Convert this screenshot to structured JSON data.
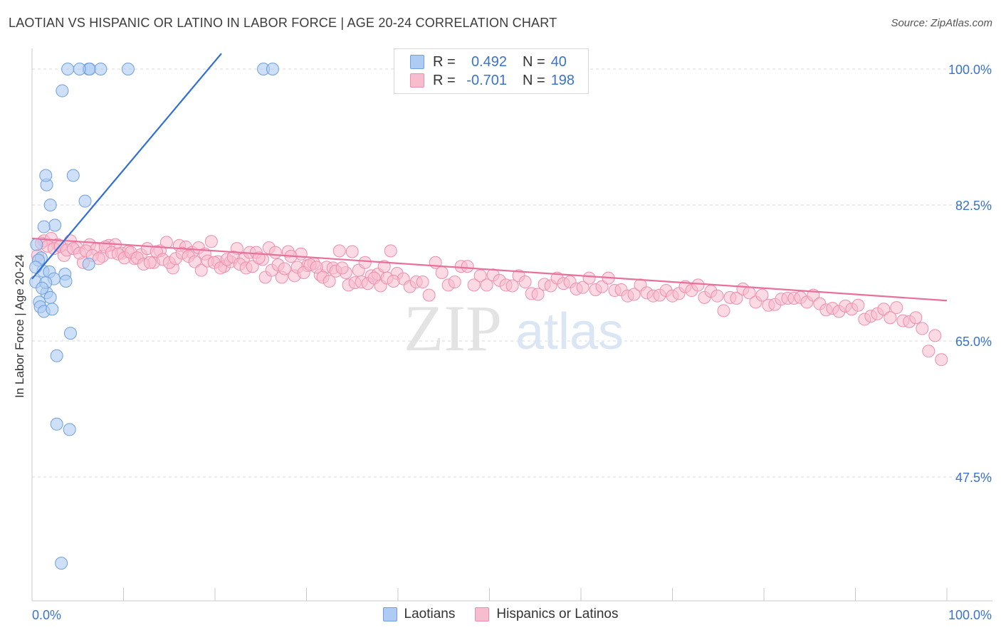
{
  "title": "LAOTIAN VS HISPANIC OR LATINO IN LABOR FORCE | AGE 20-24 CORRELATION CHART",
  "source": "Source: ZipAtlas.com",
  "watermark": {
    "zip": "ZIP",
    "atlas": "atlas"
  },
  "legend": {
    "series1": {
      "r_label": "R =",
      "r_value": "0.492",
      "n_label": "N =",
      "n_value": "40"
    },
    "series2": {
      "r_label": "R =",
      "r_value": "-0.701",
      "n_label": "N =",
      "n_value": "198"
    }
  },
  "bottom_legend": {
    "series1": "Laotians",
    "series2": "Hispanics or Latinos"
  },
  "colors": {
    "blue_fill": "#aecbf3",
    "blue_stroke": "#6f9fdc",
    "blue_line": "#2f6fd6",
    "pink_fill": "#f7bccd",
    "pink_stroke": "#ee8eab",
    "pink_line": "#e8709a",
    "tick_text": "#3a73c9"
  },
  "chart_data": {
    "type": "scatter",
    "title": "LAOTIAN VS HISPANIC OR LATINO IN LABOR FORCE | AGE 20-24 CORRELATION CHART",
    "xlabel": "",
    "ylabel": "In Labor Force | Age 20-24",
    "xlim": [
      0,
      100
    ],
    "ylim": [
      30,
      101.5
    ],
    "x_tick_labels": [
      "0.0%",
      "100.0%"
    ],
    "y_ticks": [
      47.5,
      65.0,
      82.5,
      100.0
    ],
    "y_tick_labels": [
      "47.5%",
      "65.0%",
      "82.5%",
      "100.0%"
    ],
    "grid": true,
    "legend_position": "top-center",
    "series": [
      {
        "name": "Laotians",
        "color": "#aecbf3",
        "trend": {
          "x": [
            0.0,
            20.7
          ],
          "y": [
            73.0,
            102.0
          ]
        },
        "x": [
          3.9,
          6.2,
          6.3,
          5.2,
          7.5,
          10.5,
          25.3,
          26.3,
          3.3,
          1.6,
          4.5,
          1.5,
          5.8,
          2.0,
          2.5,
          1.3,
          0.5,
          1.0,
          1.2,
          1.9,
          3.6,
          6.2,
          3.7,
          2.4,
          1.6,
          2.0,
          0.8,
          0.9,
          1.3,
          2.2,
          4.2,
          2.7,
          2.7,
          4.1,
          3.2,
          0.7,
          0.4,
          0.4,
          1.5,
          1.1
        ],
        "y": [
          100.0,
          100.0,
          100.0,
          100.0,
          100.0,
          100.0,
          100.0,
          100.0,
          97.2,
          85.1,
          86.3,
          86.3,
          83.0,
          82.5,
          79.9,
          79.7,
          77.4,
          75.7,
          74.0,
          73.9,
          73.6,
          74.9,
          72.7,
          73.0,
          71.2,
          70.6,
          70.0,
          69.4,
          68.8,
          69.1,
          66.0,
          63.1,
          54.3,
          53.6,
          36.4,
          75.4,
          74.5,
          72.6,
          72.5,
          71.8
        ]
      },
      {
        "name": "Hispanics or Latinos",
        "color": "#f7bccd",
        "trend": {
          "x": [
            0.0,
            100.0
          ],
          "y": [
            78.2,
            70.2
          ]
        },
        "x": [
          0.6,
          1.3,
          2.1,
          2.8,
          3.5,
          4.2,
          4.9,
          5.6,
          6.3,
          7.0,
          7.7,
          8.4,
          9.1,
          9.8,
          10.5,
          11.2,
          11.9,
          12.6,
          13.3,
          14.0,
          14.7,
          15.4,
          16.1,
          16.8,
          17.5,
          18.2,
          18.9,
          19.6,
          20.3,
          21.0,
          21.7,
          22.4,
          23.1,
          23.8,
          24.5,
          25.2,
          25.9,
          26.6,
          27.3,
          28.0,
          28.7,
          29.4,
          30.1,
          30.8,
          31.5,
          32.2,
          32.9,
          33.6,
          34.3,
          35.0,
          35.7,
          36.4,
          37.1,
          37.8,
          38.5,
          39.2,
          39.9,
          40.6,
          41.3,
          42.0,
          42.7,
          43.4,
          44.1,
          44.8,
          45.5,
          46.2,
          46.9,
          47.6,
          48.3,
          49.0,
          49.7,
          50.4,
          51.1,
          51.8,
          52.5,
          53.2,
          53.9,
          54.6,
          55.3,
          56.0,
          56.7,
          57.4,
          58.1,
          58.8,
          59.5,
          60.2,
          60.9,
          61.6,
          62.3,
          63.0,
          63.7,
          64.4,
          65.1,
          65.8,
          66.5,
          67.2,
          67.9,
          68.6,
          69.3,
          70.0,
          70.7,
          71.4,
          72.1,
          72.8,
          73.5,
          74.2,
          74.9,
          75.6,
          76.3,
          77.0,
          77.7,
          78.4,
          79.1,
          79.8,
          80.5,
          81.2,
          81.9,
          82.6,
          83.3,
          84.0,
          84.7,
          85.4,
          86.1,
          86.8,
          87.5,
          88.2,
          88.9,
          89.6,
          90.3,
          91.0,
          91.7,
          92.4,
          93.1,
          93.8,
          94.5,
          95.2,
          95.9,
          96.6,
          97.3,
          98.0,
          98.7,
          99.4,
          1.0,
          1.7,
          2.4,
          3.1,
          3.8,
          4.5,
          5.2,
          5.9,
          6.6,
          7.3,
          8.0,
          8.7,
          9.4,
          10.1,
          10.8,
          11.5,
          12.2,
          12.9,
          13.6,
          14.3,
          15.0,
          15.7,
          16.4,
          17.1,
          17.8,
          18.5,
          19.2,
          19.9,
          20.6,
          21.3,
          22.0,
          22.7,
          23.4,
          24.1,
          24.8,
          25.5,
          26.2,
          26.9,
          27.6,
          28.3,
          29.0,
          29.7,
          30.4,
          31.1,
          31.8,
          32.5,
          33.2,
          33.9,
          34.6,
          35.3,
          36.0,
          36.7,
          37.4,
          38.1,
          38.8,
          39.5
        ],
        "y": [
          76.0,
          77.9,
          78.2,
          77.4,
          76.0,
          77.9,
          77.0,
          75.1,
          77.4,
          76.8,
          75.9,
          77.3,
          77.4,
          76.3,
          76.5,
          75.6,
          76.1,
          76.9,
          75.1,
          76.6,
          77.7,
          74.4,
          77.3,
          77.1,
          76.4,
          77.0,
          76.2,
          77.8,
          75.2,
          74.6,
          75.2,
          76.9,
          75.5,
          76.4,
          76.4,
          75.5,
          77.0,
          76.4,
          73.2,
          76.5,
          73.4,
          76.2,
          74.7,
          75.0,
          73.5,
          74.5,
          74.4,
          76.6,
          73.8,
          76.5,
          74.1,
          75.1,
          73.4,
          73.6,
          74.6,
          76.6,
          73.7,
          73.0,
          72.0,
          72.6,
          72.6,
          70.9,
          75.1,
          73.8,
          72.2,
          72.6,
          74.6,
          74.6,
          72.2,
          73.4,
          72.2,
          73.5,
          72.8,
          72.2,
          72.1,
          73.4,
          72.6,
          71.1,
          71.0,
          72.3,
          72.1,
          73.1,
          72.4,
          72.6,
          71.7,
          71.9,
          73.1,
          71.6,
          72.0,
          73.1,
          71.5,
          71.6,
          70.8,
          71.0,
          72.2,
          71.2,
          70.8,
          70.9,
          71.5,
          70.8,
          71.1,
          72.0,
          71.5,
          72.2,
          70.6,
          71.4,
          70.8,
          68.9,
          70.6,
          70.5,
          71.7,
          71.2,
          70.0,
          70.9,
          69.6,
          69.7,
          70.4,
          70.5,
          70.5,
          70.6,
          70.0,
          70.9,
          69.8,
          69.0,
          69.2,
          68.8,
          69.5,
          69.1,
          69.6,
          67.8,
          68.2,
          68.5,
          69.1,
          68.0,
          69.3,
          67.6,
          67.5,
          68.0,
          66.6,
          63.7,
          65.7,
          62.6,
          77.6,
          77.2,
          76.9,
          77.2,
          76.7,
          76.9,
          76.3,
          76.6,
          76.0,
          75.6,
          77.1,
          76.4,
          76.2,
          75.7,
          76.4,
          75.7,
          74.9,
          75.1,
          76.5,
          75.5,
          75.1,
          75.6,
          76.3,
          75.9,
          75.2,
          74.1,
          75.3,
          75.1,
          74.4,
          75.5,
          75.8,
          74.9,
          74.4,
          74.6,
          75.7,
          73.2,
          74.1,
          74.8,
          74.3,
          75.9,
          74.5,
          73.8,
          74.8,
          74.5,
          73.2,
          72.7,
          74.0,
          74.4,
          72.2,
          72.5,
          72.6,
          72.4,
          73.1,
          72.1,
          73.1,
          72.7
        ]
      }
    ]
  }
}
